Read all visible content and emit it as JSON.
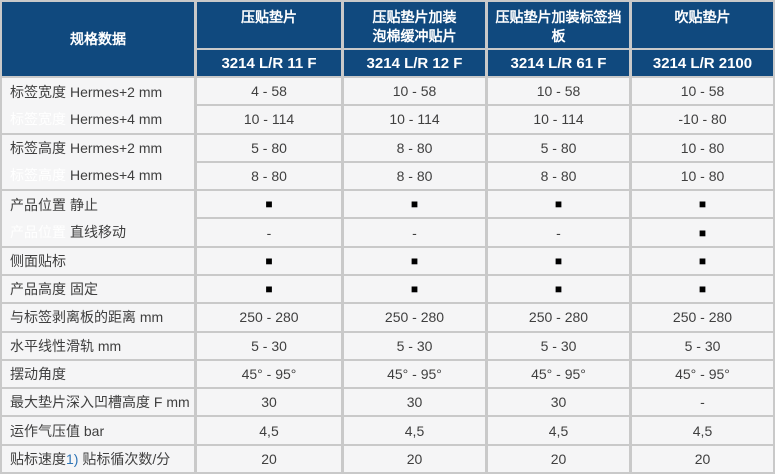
{
  "table": {
    "header": {
      "corner": "规格数据",
      "columns": [
        {
          "name": "压贴垫片",
          "model": "3214 L/R 11 F"
        },
        {
          "name": "压贴垫片加装\n泡棉缓冲贴片",
          "model": "3214 L/R 12 F"
        },
        {
          "name": "压贴垫片加装标签挡\n板",
          "model": "3214 L/R 61 F"
        },
        {
          "name": "吹贴垫片",
          "model": "3214 L/R 2100"
        }
      ]
    },
    "left_cells": [
      {
        "type": "group",
        "span": 2,
        "category": "标签宽度",
        "subs": [
          "Hermes+2 mm",
          "Hermes+4 mm"
        ]
      },
      {
        "type": "group",
        "span": 2,
        "category": "标签高度",
        "subs": [
          "Hermes+2 mm",
          "Hermes+4 mm"
        ]
      },
      {
        "type": "group",
        "span": 2,
        "category": "产品位置",
        "subs": [
          "静止",
          "直线移动"
        ]
      },
      {
        "type": "single",
        "span": 1,
        "text": "侧面贴标"
      },
      {
        "type": "pair",
        "span": 1,
        "category": "产品高度",
        "sub": "固定"
      },
      {
        "type": "single",
        "span": 1,
        "text": "与标签剥离板的距离 mm"
      },
      {
        "type": "single",
        "span": 1,
        "text": "水平线性滑轨 mm"
      },
      {
        "type": "single",
        "span": 1,
        "text": "摆动角度"
      },
      {
        "type": "single",
        "span": 1,
        "text": "最大垫片深入凹槽高度 F mm"
      },
      {
        "type": "single",
        "span": 1,
        "text": "运作气压值 bar"
      },
      {
        "type": "single",
        "span": 1,
        "text": "贴标速度",
        "note": "1)",
        "rest": " 贴标循次数/分"
      }
    ],
    "rows": [
      [
        "4 - 58",
        "10 - 58",
        "10 - 58",
        "10 - 58"
      ],
      [
        "10 - 114",
        "10 - 114",
        "10 - 114",
        "-10 - 80"
      ],
      [
        "5 - 80",
        "8 - 80",
        "5 - 80",
        "10 - 80"
      ],
      [
        "8 - 80",
        "8 - 80",
        "8 - 80",
        "10 - 80"
      ],
      [
        "■",
        "■",
        "■",
        "■"
      ],
      [
        "-",
        "-",
        "-",
        "■"
      ],
      [
        "■",
        "■",
        "■",
        "■"
      ],
      [
        "■",
        "■",
        "■",
        "■"
      ],
      [
        "250 - 280",
        "250 - 280",
        "250 - 280",
        "250 - 280"
      ],
      [
        "5 - 30",
        "5 - 30",
        "5 - 30",
        "5 - 30"
      ],
      [
        "45° - 95°",
        "45° - 95°",
        "45° - 95°",
        "45° - 95°"
      ],
      [
        "30",
        "30",
        "30",
        "-"
      ],
      [
        "4,5",
        "4,5",
        "4,5",
        "4,5"
      ],
      [
        "20",
        "20",
        "20",
        "20"
      ]
    ],
    "colors": {
      "header_bg": "#10497e",
      "grid_line": "#c9c9c9",
      "cell_bg": "#f5f5f6",
      "body_text": "#3f3f3f",
      "ghost_text": "#ffffff",
      "note_blue": "#2e74b5"
    }
  }
}
